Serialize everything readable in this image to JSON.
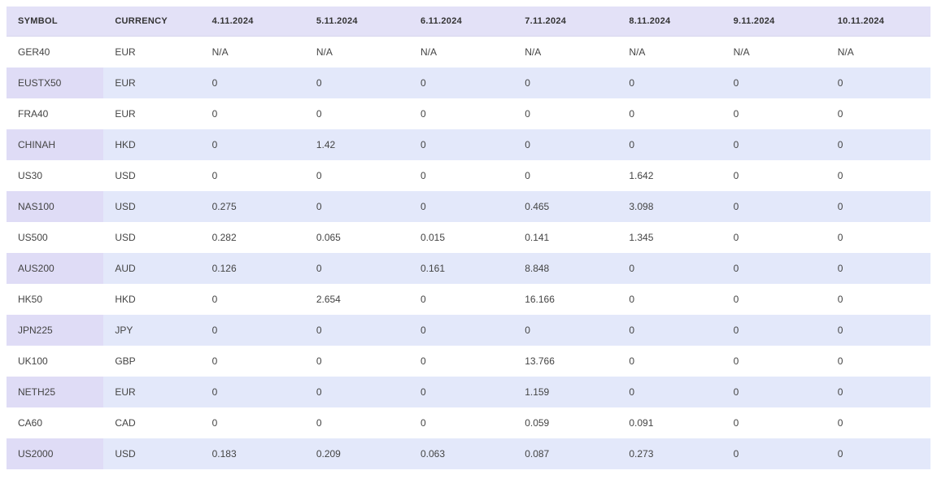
{
  "table": {
    "header_bg": "#e3e1f7",
    "row_odd_bg": "#ffffff",
    "row_even_bg": "#e3e8fa",
    "row_even_firstcell_bg": "#dfdcf6",
    "text_color": "#444444",
    "header_fontsize": 11,
    "cell_fontsize": 12,
    "columns": [
      "SYMBOL",
      "CURRENCY",
      "4.11.2024",
      "5.11.2024",
      "6.11.2024",
      "7.11.2024",
      "8.11.2024",
      "9.11.2024",
      "10.11.2024"
    ],
    "rows": [
      {
        "symbol": "GER40",
        "currency": "EUR",
        "values": [
          "N/A",
          "N/A",
          "N/A",
          "N/A",
          "N/A",
          "N/A",
          "N/A"
        ]
      },
      {
        "symbol": "EUSTX50",
        "currency": "EUR",
        "values": [
          "0",
          "0",
          "0",
          "0",
          "0",
          "0",
          "0"
        ]
      },
      {
        "symbol": "FRA40",
        "currency": "EUR",
        "values": [
          "0",
          "0",
          "0",
          "0",
          "0",
          "0",
          "0"
        ]
      },
      {
        "symbol": "CHINAH",
        "currency": "HKD",
        "values": [
          "0",
          "1.42",
          "0",
          "0",
          "0",
          "0",
          "0"
        ]
      },
      {
        "symbol": "US30",
        "currency": "USD",
        "values": [
          "0",
          "0",
          "0",
          "0",
          "1.642",
          "0",
          "0"
        ]
      },
      {
        "symbol": "NAS100",
        "currency": "USD",
        "values": [
          "0.275",
          "0",
          "0",
          "0.465",
          "3.098",
          "0",
          "0"
        ]
      },
      {
        "symbol": "US500",
        "currency": "USD",
        "values": [
          "0.282",
          "0.065",
          "0.015",
          "0.141",
          "1.345",
          "0",
          "0"
        ]
      },
      {
        "symbol": "AUS200",
        "currency": "AUD",
        "values": [
          "0.126",
          "0",
          "0.161",
          "8.848",
          "0",
          "0",
          "0"
        ]
      },
      {
        "symbol": "HK50",
        "currency": "HKD",
        "values": [
          "0",
          "2.654",
          "0",
          "16.166",
          "0",
          "0",
          "0"
        ]
      },
      {
        "symbol": "JPN225",
        "currency": "JPY",
        "values": [
          "0",
          "0",
          "0",
          "0",
          "0",
          "0",
          "0"
        ]
      },
      {
        "symbol": "UK100",
        "currency": "GBP",
        "values": [
          "0",
          "0",
          "0",
          "13.766",
          "0",
          "0",
          "0"
        ]
      },
      {
        "symbol": "NETH25",
        "currency": "EUR",
        "values": [
          "0",
          "0",
          "0",
          "1.159",
          "0",
          "0",
          "0"
        ]
      },
      {
        "symbol": "CA60",
        "currency": "CAD",
        "values": [
          "0",
          "0",
          "0",
          "0.059",
          "0.091",
          "0",
          "0"
        ]
      },
      {
        "symbol": "US2000",
        "currency": "USD",
        "values": [
          "0.183",
          "0.209",
          "0.063",
          "0.087",
          "0.273",
          "0",
          "0"
        ]
      }
    ]
  }
}
